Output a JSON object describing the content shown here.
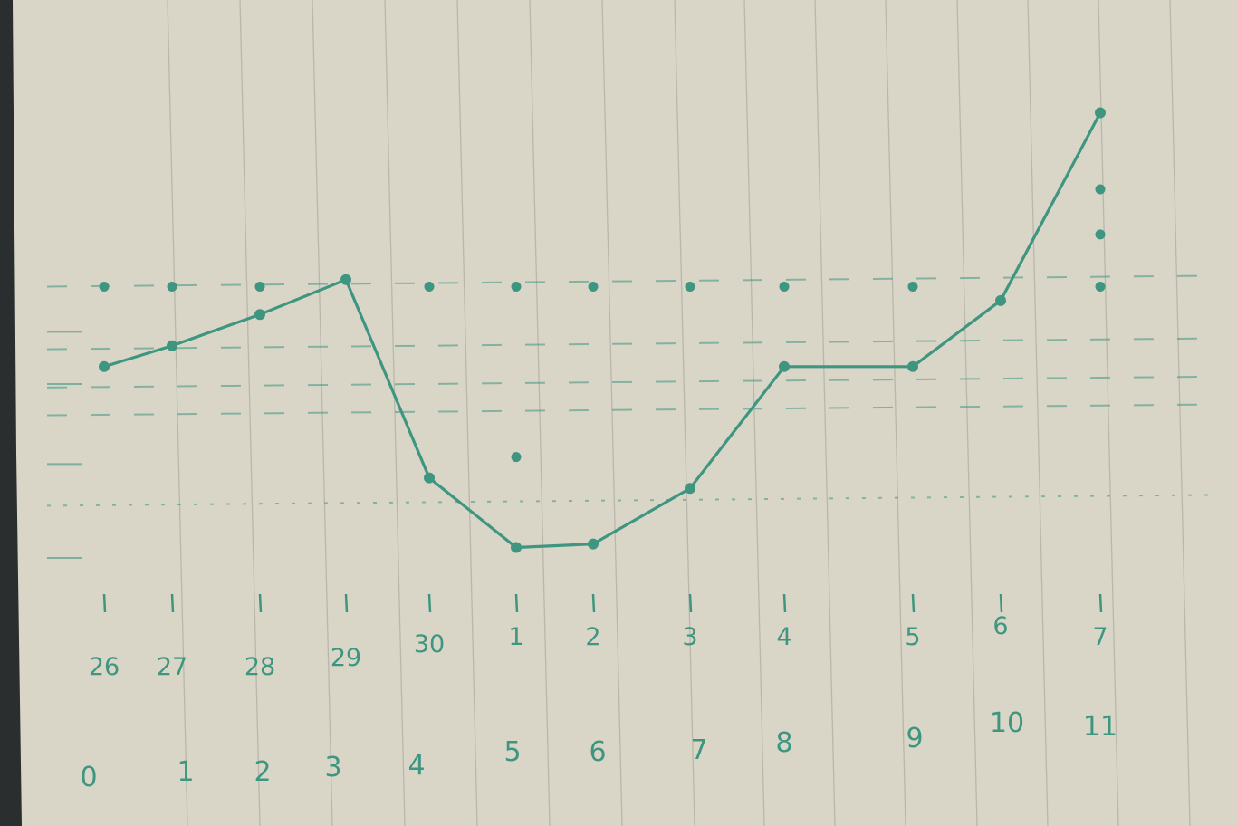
{
  "colors": {
    "paper": "#d9d6c8",
    "rule_line": "#b9b7ab",
    "ink": "#3f9680",
    "background": "#2b2e2f"
  },
  "chart_data": {
    "type": "line",
    "title": "",
    "xlabel": "",
    "ylabel": "",
    "grid": false,
    "legend": "none",
    "x": [
      0,
      1,
      2,
      3,
      4,
      5,
      6,
      7,
      8,
      9,
      10,
      11
    ],
    "day_labels": [
      "26",
      "27",
      "28",
      "29",
      "30",
      "1",
      "2",
      "3",
      "4",
      "5",
      "6",
      "7"
    ],
    "index_labels": [
      "0",
      "1",
      "2",
      "3",
      "4",
      "5",
      "6",
      "7",
      "8",
      "9",
      "10",
      "11"
    ],
    "series": [
      {
        "values": [
          5.5,
          6.1,
          7.0,
          8.0,
          2.3,
          0.3,
          0.4,
          2.0,
          5.5,
          5.5,
          7.4,
          12.8
        ]
      }
    ],
    "extra_points": [
      {
        "x": 0,
        "y": 7.8
      },
      {
        "x": 1,
        "y": 7.8
      },
      {
        "x": 2,
        "y": 7.8
      },
      {
        "x": 4,
        "y": 7.8
      },
      {
        "x": 5,
        "y": 7.8
      },
      {
        "x": 6,
        "y": 7.8
      },
      {
        "x": 7,
        "y": 7.8
      },
      {
        "x": 8,
        "y": 7.8
      },
      {
        "x": 9,
        "y": 7.8
      },
      {
        "x": 11,
        "y": 7.8
      },
      {
        "x": 5,
        "y": 2.9
      },
      {
        "x": 11,
        "y": 9.3
      },
      {
        "x": 11,
        "y": 10.6
      }
    ],
    "ylim": [
      0,
      13
    ]
  }
}
